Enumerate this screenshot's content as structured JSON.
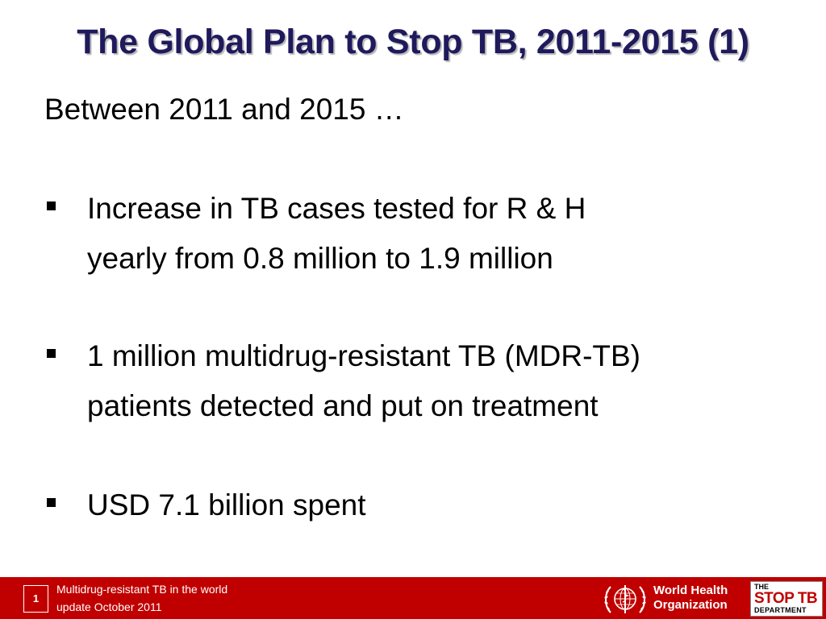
{
  "slide": {
    "title": "The Global Plan to Stop TB, 2011-2015 (1)",
    "intro": "Between 2011 and 2015 …",
    "bullets": [
      {
        "line1": "Increase in TB cases tested for R & H",
        "line2": "yearly from 0.8 million to 1.9 million"
      },
      {
        "line1": "1 million multidrug-resistant TB (MDR-TB)",
        "line2": "patients detected and put on treatment"
      },
      {
        "line1": "USD 7.1 billion spent"
      }
    ]
  },
  "footer": {
    "page_number": "1",
    "line1": "Multidrug-resistant TB in the world",
    "line2": "update October 2011",
    "who_line1": "World Health",
    "who_line2": "Organization",
    "stoptb_the": "THE",
    "stoptb_stop": "STOP TB",
    "stoptb_department": "DEPARTMENT"
  },
  "colors": {
    "title": "#1f1a5c",
    "footer_bg": "#c00000",
    "stoptb_red": "#c00000"
  },
  "icons": {
    "who_logo": "who-emblem-icon",
    "bullet": "square-bullet-icon"
  }
}
